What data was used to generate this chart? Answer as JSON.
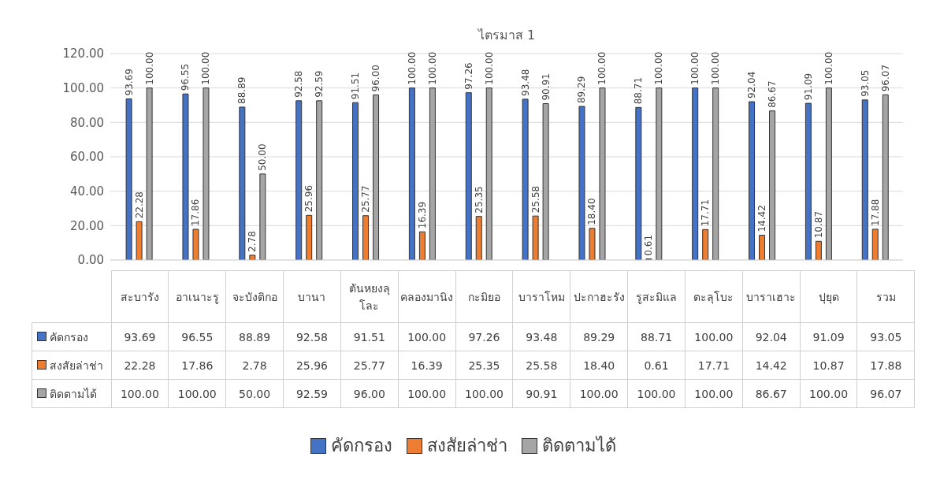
{
  "chart_data": {
    "type": "bar",
    "title": "ไตรมาส 1",
    "categories": [
      "สะบารัง",
      "อาเนาะรู",
      "จะบังติกอ",
      "บานา",
      "ตันหยงลุโละ",
      "คลองมานิง",
      "กะมิยอ",
      "บาราโหม",
      "ปะกาฮะรัง",
      "รูสะมิแล",
      "ตะลุโบะ",
      "บาราเฮาะ",
      "ปุยุด",
      "รวม"
    ],
    "series": [
      {
        "name": "คัดกรอง",
        "color": "#4472c4",
        "values": [
          93.69,
          96.55,
          88.89,
          92.58,
          91.51,
          100,
          97.26,
          93.48,
          89.29,
          88.71,
          100,
          92.04,
          91.09,
          93.05
        ],
        "value_labels": [
          "93.69",
          "96.55",
          "88.89",
          "92.58",
          "91.51",
          "100.00",
          "97.26",
          "93.48",
          "89.29",
          "88.71",
          "100.00",
          "92.04",
          "91.09",
          "93.05"
        ]
      },
      {
        "name": "สงสัยล่าช่า",
        "color": "#ed7d31",
        "values": [
          22.28,
          17.86,
          2.78,
          25.96,
          25.77,
          16.39,
          25.35,
          25.58,
          18.4,
          0.61,
          17.71,
          14.42,
          10.87,
          17.88
        ],
        "value_labels": [
          "22.28",
          "17.86",
          "2.78",
          "25.96",
          "25.77",
          "16.39",
          "25.35",
          "25.58",
          "18.40",
          "0.61",
          "17.71",
          "14.42",
          "10.87",
          "17.88"
        ]
      },
      {
        "name": "ติดตามได้",
        "color": "#a5a5a5",
        "values": [
          100,
          100,
          50,
          92.59,
          96,
          100,
          100,
          90.91,
          100,
          100,
          100,
          86.67,
          100,
          96.07
        ],
        "value_labels": [
          "100.00",
          "100.00",
          "50.00",
          "92.59",
          "96.00",
          "100.00",
          "100.00",
          "90.91",
          "100.00",
          "100.00",
          "100.00",
          "86.67",
          "100.00",
          "96.07"
        ]
      }
    ],
    "ylim": [
      0,
      120
    ],
    "yticks": [
      {
        "value": 0,
        "label": "0.00"
      },
      {
        "value": 20,
        "label": "20.00"
      },
      {
        "value": 40,
        "label": "40.00"
      },
      {
        "value": 60,
        "label": "60.00"
      },
      {
        "value": 80,
        "label": "80.00"
      },
      {
        "value": 100,
        "label": "100.00"
      },
      {
        "value": 120,
        "label": "120.00"
      }
    ],
    "grid": "y",
    "legend": "bottom"
  }
}
